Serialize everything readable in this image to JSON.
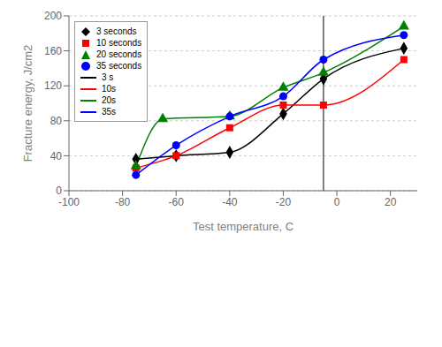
{
  "chart_data": {
    "type": "line",
    "xlabel": "Test temperature, C",
    "ylabel": "Fracture energy, J/cm2",
    "xlim": [
      -100,
      30
    ],
    "ylim": [
      0,
      200
    ],
    "xticks": [
      -100,
      -80,
      -60,
      -40,
      -20,
      0,
      20
    ],
    "yticks": [
      0,
      40,
      80,
      120,
      160,
      200
    ],
    "grid": "y",
    "legend": "upper left",
    "vline_x": -5,
    "series": [
      {
        "name": "3 seconds",
        "line_name": "3 s",
        "color": "black",
        "marker": "diamond",
        "x": [
          -75,
          -60,
          -40,
          -20,
          -5,
          25
        ],
        "y": [
          36,
          40,
          44,
          88,
          128,
          163
        ]
      },
      {
        "name": "10 seconds",
        "line_name": "10s",
        "color": "red",
        "marker": "square",
        "x": [
          -75,
          -60,
          -40,
          -20,
          -5,
          25
        ],
        "y": [
          26,
          40,
          72,
          98,
          98,
          150
        ]
      },
      {
        "name": "20 seconds",
        "line_name": "20s",
        "color": "green",
        "marker": "triangle",
        "x": [
          -75,
          -65,
          -40,
          -20,
          -5,
          25
        ],
        "y": [
          28,
          82,
          85,
          118,
          135,
          188
        ]
      },
      {
        "name": "35 seconds",
        "line_name": "35s",
        "color": "blue",
        "marker": "circle",
        "x": [
          -75,
          -60,
          -40,
          -20,
          -5,
          25
        ],
        "y": [
          18,
          52,
          85,
          108,
          150,
          178
        ]
      }
    ]
  }
}
